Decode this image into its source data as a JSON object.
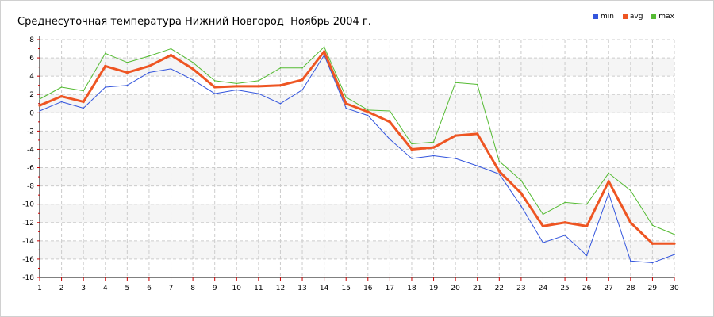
{
  "chart_data": {
    "type": "line",
    "title": "Среднесуточная температура Нижний Новгород  Ноябрь 2004 г.",
    "x": [
      1,
      2,
      3,
      4,
      5,
      6,
      7,
      8,
      9,
      10,
      11,
      12,
      13,
      14,
      15,
      16,
      17,
      18,
      19,
      20,
      21,
      22,
      23,
      24,
      25,
      26,
      27,
      28,
      29,
      30
    ],
    "xlim": [
      1,
      30
    ],
    "ylim": [
      -18,
      8
    ],
    "yticks": [
      8,
      6,
      4,
      2,
      0,
      -2,
      -4,
      -6,
      -8,
      -10,
      -12,
      -14,
      -16,
      -18
    ],
    "grid": true,
    "legend_position": "top-right",
    "series": [
      {
        "name": "min",
        "color": "#3355dd",
        "stroke_px": 1,
        "values": [
          0.2,
          1.2,
          0.5,
          2.8,
          3.0,
          4.4,
          4.8,
          3.6,
          2.1,
          2.5,
          2.1,
          1.0,
          2.5,
          6.3,
          0.5,
          -0.3,
          -2.9,
          -5.0,
          -4.7,
          -5.0,
          -5.8,
          -6.7,
          -10.2,
          -14.2,
          -13.4,
          -15.6,
          -8.8,
          -16.2,
          -16.4,
          -15.5
        ]
      },
      {
        "name": "avg",
        "color": "#ee5522",
        "stroke_px": 3,
        "values": [
          0.8,
          1.8,
          1.2,
          5.1,
          4.4,
          5.1,
          6.3,
          4.8,
          2.8,
          2.9,
          2.9,
          3.0,
          3.6,
          6.7,
          1.0,
          0.1,
          -1.0,
          -4.0,
          -3.8,
          -2.5,
          -2.3,
          -6.4,
          -8.8,
          -12.4,
          -12.0,
          -12.4,
          -7.5,
          -12.0,
          -14.3,
          -14.3
        ]
      },
      {
        "name": "max",
        "color": "#55bb33",
        "stroke_px": 1,
        "values": [
          1.5,
          2.8,
          2.4,
          6.5,
          5.5,
          6.2,
          7.0,
          5.5,
          3.5,
          3.2,
          3.5,
          4.9,
          4.9,
          7.2,
          1.7,
          0.3,
          0.2,
          -3.4,
          -3.2,
          3.3,
          3.1,
          -5.3,
          -7.4,
          -11.1,
          -9.8,
          -10.0,
          -6.6,
          -8.5,
          -12.3,
          -13.3
        ]
      }
    ]
  }
}
